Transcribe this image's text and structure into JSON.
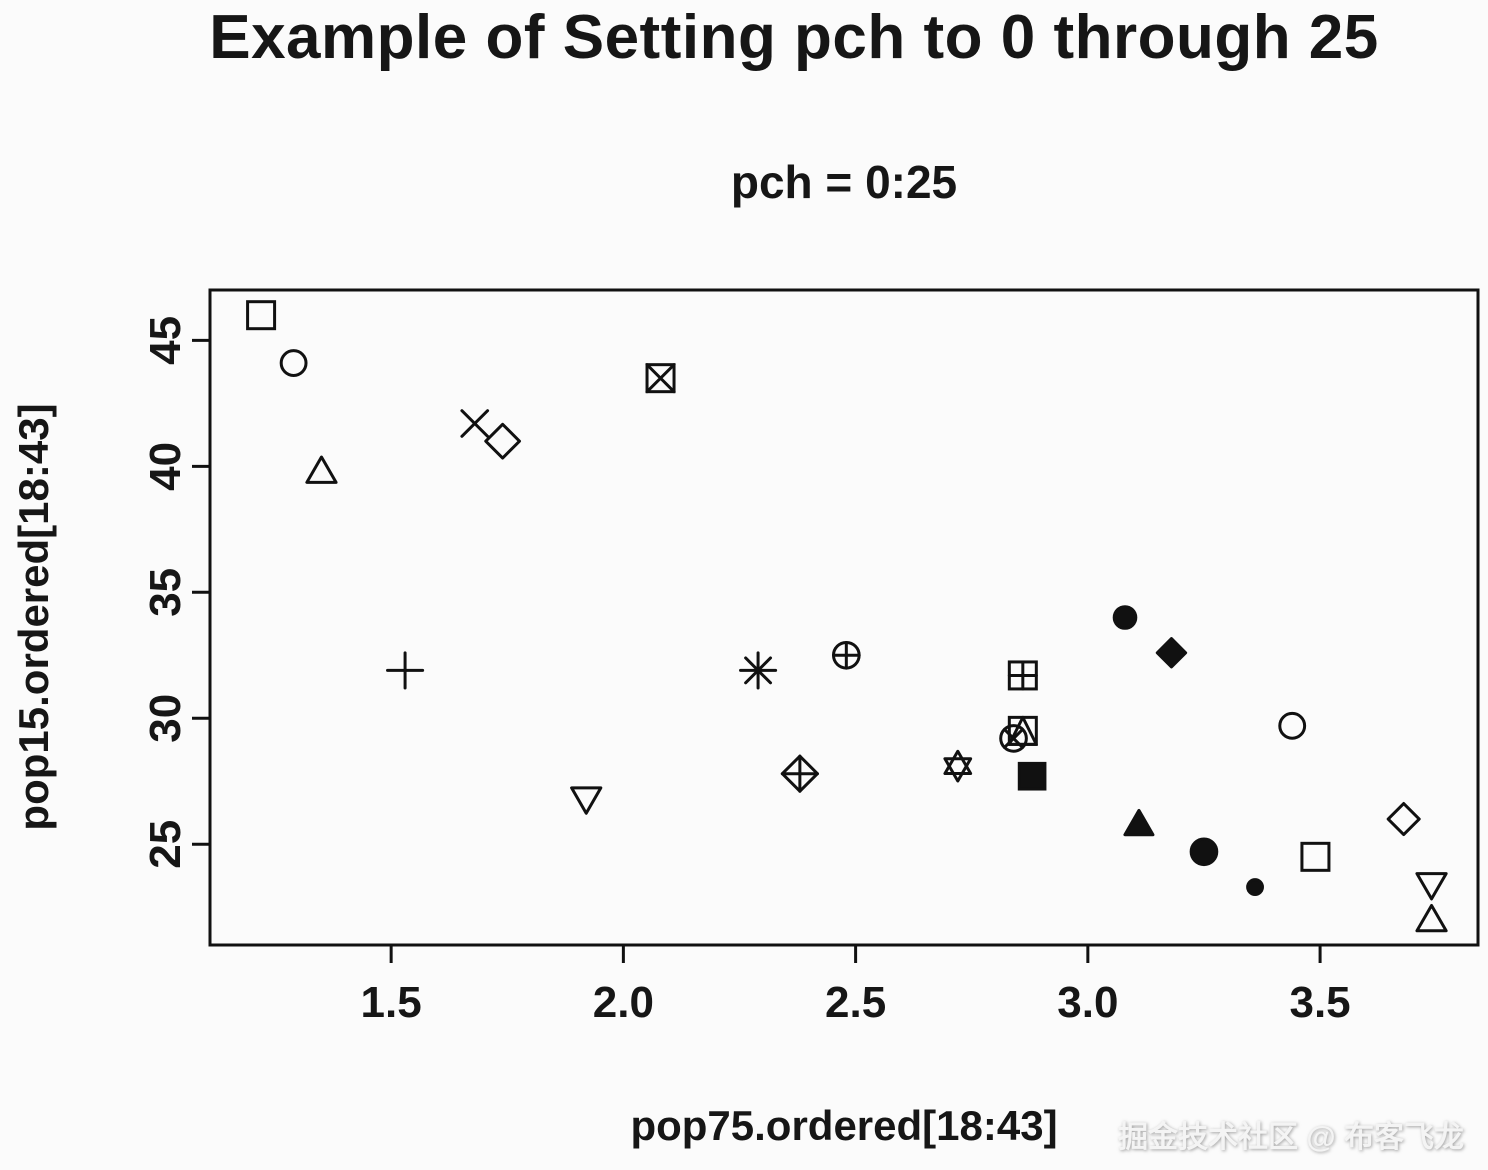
{
  "title": "Example of Setting pch to 0 through 25",
  "watermark": "掘金技术社区 @ 布客飞龙",
  "chart_data": {
    "type": "scatter",
    "title": "Example of Setting pch to 0 through 25",
    "subtitle": "pch = 0:25",
    "xlabel": "pop75.ordered[18:43]",
    "ylabel": "pop15.ordered[18:43]",
    "xlim": [
      1.11,
      3.84
    ],
    "ylim": [
      21.0,
      47.0
    ],
    "x_ticks": [
      1.5,
      2.0,
      2.5,
      3.0,
      3.5
    ],
    "x_tick_labels": [
      "1.5",
      "2.0",
      "2.5",
      "3.0",
      "3.5"
    ],
    "y_ticks": [
      25,
      30,
      35,
      40,
      45
    ],
    "y_tick_labels": [
      "25",
      "30",
      "35",
      "40",
      "45"
    ],
    "grid": false,
    "legend": "none",
    "marker_color": "#111111",
    "points": [
      {
        "pch": 0,
        "symbol": "open-square",
        "x": 1.22,
        "y": 46.0
      },
      {
        "pch": 1,
        "symbol": "open-circle",
        "x": 1.29,
        "y": 44.1
      },
      {
        "pch": 2,
        "symbol": "open-triangle-up",
        "x": 1.35,
        "y": 39.7
      },
      {
        "pch": 3,
        "symbol": "plus",
        "x": 1.53,
        "y": 31.9
      },
      {
        "pch": 4,
        "symbol": "cross",
        "x": 1.68,
        "y": 41.7
      },
      {
        "pch": 5,
        "symbol": "open-diamond",
        "x": 1.74,
        "y": 41.0
      },
      {
        "pch": 6,
        "symbol": "open-triangle-down",
        "x": 1.92,
        "y": 26.9
      },
      {
        "pch": 7,
        "symbol": "square-cross",
        "x": 2.08,
        "y": 43.5
      },
      {
        "pch": 8,
        "symbol": "asterisk",
        "x": 2.29,
        "y": 31.9
      },
      {
        "pch": 9,
        "symbol": "diamond-plus",
        "x": 2.38,
        "y": 27.8
      },
      {
        "pch": 10,
        "symbol": "circle-plus",
        "x": 2.48,
        "y": 32.5
      },
      {
        "pch": 11,
        "symbol": "triangles-up-down",
        "x": 2.72,
        "y": 28.1
      },
      {
        "pch": 12,
        "symbol": "square-plus",
        "x": 2.86,
        "y": 31.7
      },
      {
        "pch": 13,
        "symbol": "circle-cross",
        "x": 2.84,
        "y": 29.2
      },
      {
        "pch": 14,
        "symbol": "square-triangle",
        "x": 2.86,
        "y": 29.5
      },
      {
        "pch": 15,
        "symbol": "filled-square",
        "x": 2.88,
        "y": 27.7
      },
      {
        "pch": 16,
        "symbol": "filled-circle",
        "x": 3.08,
        "y": 34.0
      },
      {
        "pch": 17,
        "symbol": "filled-triangle-up",
        "x": 3.11,
        "y": 25.7
      },
      {
        "pch": 18,
        "symbol": "filled-diamond",
        "x": 3.18,
        "y": 32.6
      },
      {
        "pch": 19,
        "symbol": "filled-circle-large",
        "x": 3.25,
        "y": 24.7
      },
      {
        "pch": 20,
        "symbol": "filled-circle-small",
        "x": 3.36,
        "y": 23.3
      },
      {
        "pch": 21,
        "symbol": "fillable-circle",
        "x": 3.44,
        "y": 29.7
      },
      {
        "pch": 22,
        "symbol": "fillable-square",
        "x": 3.49,
        "y": 24.5
      },
      {
        "pch": 23,
        "symbol": "fillable-diamond",
        "x": 3.68,
        "y": 26.0
      },
      {
        "pch": 24,
        "symbol": "fillable-triangle-up",
        "x": 3.74,
        "y": 21.9
      },
      {
        "pch": 25,
        "symbol": "fillable-triangle-down",
        "x": 3.74,
        "y": 23.5
      }
    ]
  }
}
